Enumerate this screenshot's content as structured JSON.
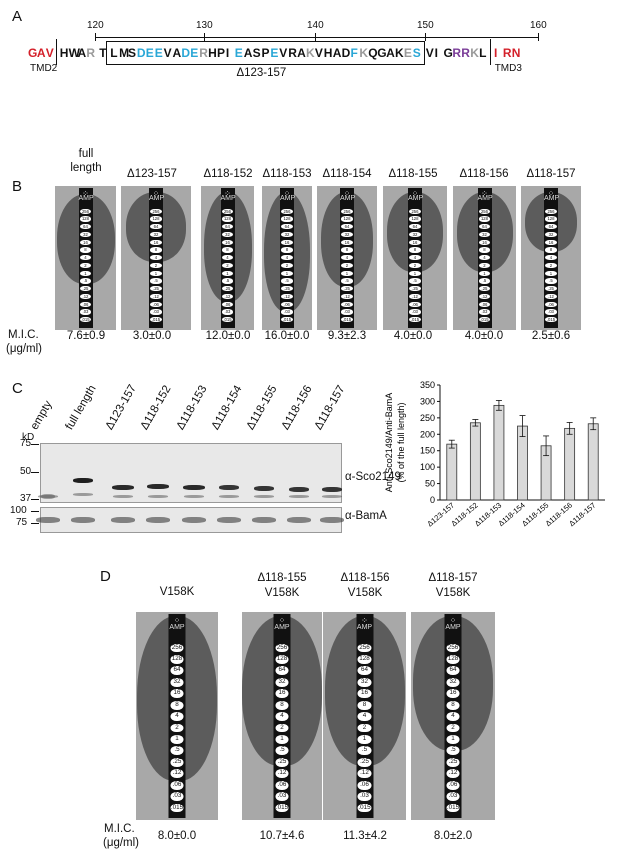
{
  "panelA": {
    "letter": "A",
    "ticks": [
      "120",
      "130",
      "140",
      "150",
      "160"
    ],
    "left": [
      {
        "t": "G",
        "c": "red"
      },
      {
        "t": "A",
        "c": "red"
      },
      {
        "t": "V",
        "c": "red"
      }
    ],
    "tmd2": "TMD2",
    "mid1": [
      {
        "t": "H",
        "c": "k"
      },
      {
        "t": "W",
        "c": "k"
      },
      {
        "t": "A",
        "c": "k"
      },
      {
        "t": "R",
        "c": "g"
      },
      {
        "t": " ",
        "c": "k"
      },
      {
        "t": "T",
        "c": "k"
      }
    ],
    "boxed": [
      {
        "t": "L",
        "c": "k"
      },
      {
        "t": "M",
        "c": "k"
      },
      {
        "t": "S",
        "c": "k"
      },
      {
        "t": "D",
        "c": "b"
      },
      {
        "t": "E",
        "c": "b"
      },
      {
        "t": "E",
        "c": "b"
      },
      {
        "t": "V",
        "c": "k"
      },
      {
        "t": "A",
        "c": "k"
      },
      {
        "t": "D",
        "c": "b"
      },
      {
        "t": "E",
        "c": "b"
      },
      {
        "t": "R",
        "c": "g"
      },
      {
        "t": "H",
        "c": "k"
      },
      {
        "t": "P",
        "c": "k"
      },
      {
        "t": "I",
        "c": "k"
      },
      {
        "t": "E",
        "c": "b"
      },
      {
        "t": "A",
        "c": "k"
      },
      {
        "t": "S",
        "c": "k"
      },
      {
        "t": "P",
        "c": "k"
      },
      {
        "t": "E",
        "c": "b"
      },
      {
        "t": "V",
        "c": "k"
      },
      {
        "t": "R",
        "c": "k"
      },
      {
        "t": "A",
        "c": "k"
      },
      {
        "t": "K",
        "c": "g"
      },
      {
        "t": "V",
        "c": "k"
      },
      {
        "t": "H",
        "c": "k"
      },
      {
        "t": "A",
        "c": "k"
      },
      {
        "t": "D",
        "c": "k"
      },
      {
        "t": "F",
        "c": "b"
      },
      {
        "t": "K",
        "c": "g"
      },
      {
        "t": "Q",
        "c": "k"
      },
      {
        "t": "G",
        "c": "k"
      },
      {
        "t": "A",
        "c": "k"
      },
      {
        "t": "K",
        "c": "k"
      },
      {
        "t": "E",
        "c": "g"
      },
      {
        "t": "S",
        "c": "b"
      }
    ],
    "after": [
      {
        "t": "V",
        "c": "k"
      },
      {
        "t": "I",
        "c": "k"
      },
      {
        "t": "G",
        "c": "k"
      },
      {
        "t": "R",
        "c": "p"
      },
      {
        "t": "R",
        "c": "p"
      },
      {
        "t": "K",
        "c": "g"
      },
      {
        "t": "L",
        "c": "k"
      }
    ],
    "right": [
      {
        "t": "I",
        "c": "red"
      },
      {
        "t": "R",
        "c": "red"
      },
      {
        "t": "N",
        "c": "red"
      }
    ],
    "tmd3": "TMD3",
    "deletion": "Δ123-157",
    "colors": {
      "red": "#d4202a",
      "b": "#2aa7d6",
      "g": "#9a9a9a",
      "p": "#7a3c98",
      "k": "#111111"
    }
  },
  "panelB": {
    "letter": "B",
    "columns": [
      {
        "label": "full\nlength",
        "mic": "7.6±0.9"
      },
      {
        "label": "Δ123-157",
        "mic": "3.0±0.0"
      },
      {
        "label": "Δ118-152",
        "mic": "12.0±0.0"
      },
      {
        "label": "Δ118-153",
        "mic": "16.0±0.0"
      },
      {
        "label": "Δ118-154",
        "mic": "9.3±2.3"
      },
      {
        "label": "Δ118-155",
        "mic": "4.0±0.0"
      },
      {
        "label": "Δ118-156",
        "mic": "4.0±0.0"
      },
      {
        "label": "Δ118-157",
        "mic": "2.5±0.6"
      }
    ],
    "mic_label": "M.I.C.",
    "mic_unit": "(μg/ml)"
  },
  "panelC": {
    "letter": "C",
    "lanes": [
      "empty",
      "full length",
      "Δ123-157",
      "Δ118-152",
      "Δ118-153",
      "Δ118-154",
      "Δ118-155",
      "Δ118-156",
      "Δ118-157"
    ],
    "kd": "kD",
    "markers_top": [
      "75",
      "50",
      "37"
    ],
    "markers_bottom": [
      "100",
      "75"
    ],
    "ab1": "α-Sco2149",
    "ab2": "α-BamA"
  },
  "chart_data": {
    "type": "bar",
    "categories": [
      "Δ123-157",
      "Δ118-152",
      "Δ118-153",
      "Δ118-154",
      "Δ118-155",
      "Δ118-156",
      "Δ118-157"
    ],
    "values": [
      170,
      235,
      288,
      225,
      165,
      218,
      232
    ],
    "errors": [
      12,
      10,
      15,
      32,
      30,
      18,
      18
    ],
    "ylabel_line1": "Anti-Sco2149/Anti-BamA",
    "ylabel_line2": "(% of the full length)",
    "ylim": [
      0,
      350
    ],
    "yticks": [
      "0",
      "50",
      "100",
      "150",
      "200",
      "250",
      "300",
      "350"
    ],
    "bar_color": "#d9d9d9"
  },
  "panelD": {
    "letter": "D",
    "columns": [
      {
        "label": "V158K",
        "mic": "8.0±0.0"
      },
      {
        "label": "Δ118-155\nV158K",
        "mic": "10.7±4.6"
      },
      {
        "label": "Δ118-156\nV158K",
        "mic": "11.3±4.2"
      },
      {
        "label": "Δ118-157\nV158K",
        "mic": "8.0±2.0"
      }
    ],
    "mic_label": "M.I.C.",
    "mic_unit": "(μg/ml)",
    "strip_values": [
      "256",
      "128",
      "64",
      "32",
      "16",
      "8",
      "4",
      "2",
      "1",
      ".5",
      ".25",
      ".12",
      ".06",
      ".03",
      ".015"
    ],
    "strip_label": "AMP"
  }
}
